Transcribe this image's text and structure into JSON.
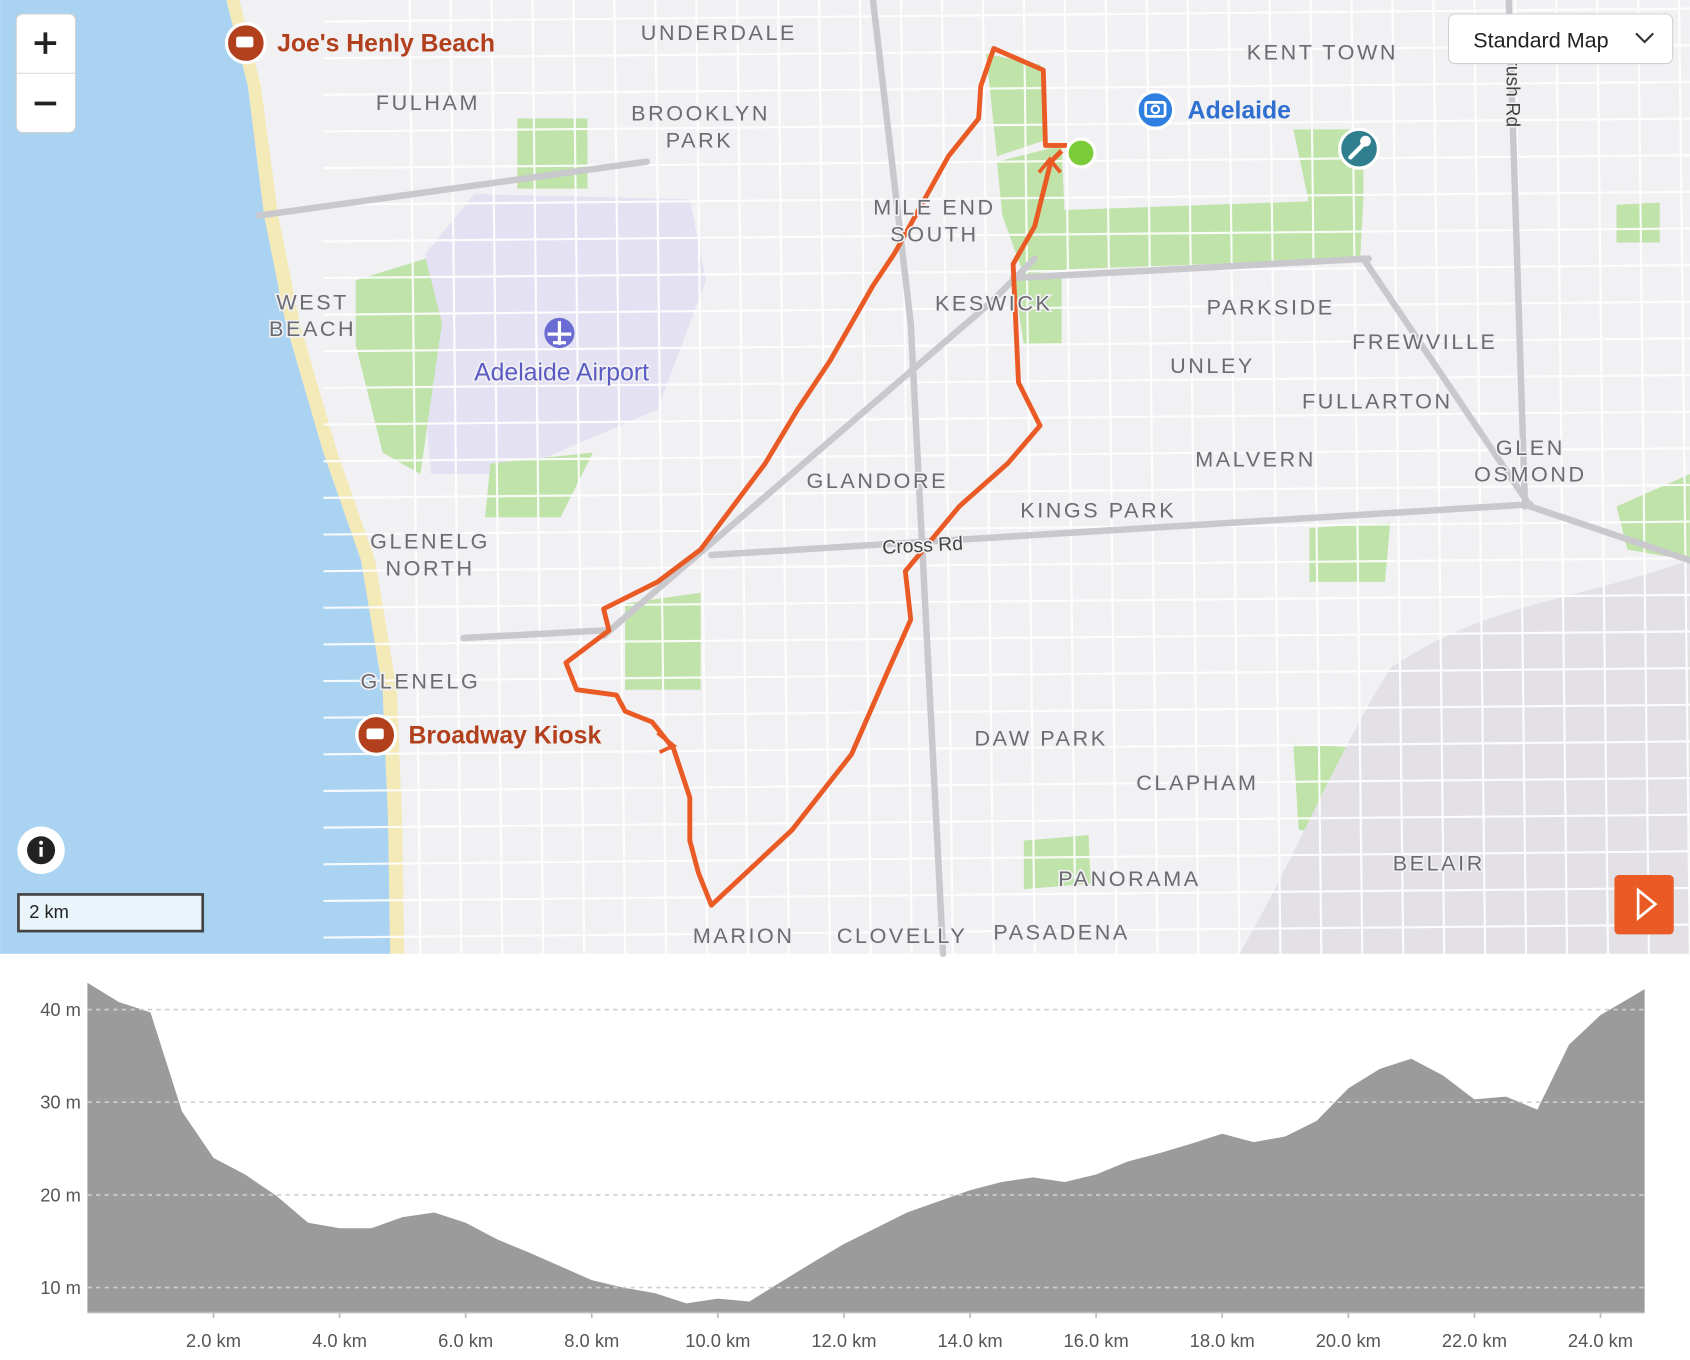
{
  "map": {
    "view_selector": "Standard Map",
    "scale": "2 km",
    "places": [
      "UNDERDALE",
      "KENT TOWN",
      "FULHAM",
      "BROOKLYN",
      "PARK",
      "MILE END",
      "SOUTH",
      "KESWICK",
      "PARKSIDE",
      "FREWVILLE",
      "UNLEY",
      "FULLARTON",
      "MALVERN",
      "GLEN",
      "OSMOND",
      "GLANDORE",
      "KINGS PARK",
      "WEST",
      "BEACH",
      "GLENELG",
      "NORTH",
      "GLENELG",
      "DAW PARK",
      "CLAPHAM",
      "PANORAMA",
      "BELAIR",
      "MARION",
      "CLOVELLY",
      "PASADENA"
    ],
    "pois": [
      "Joe's Henly Beach",
      "Broadway Kiosk",
      "Adelaide Airport",
      "Adelaide"
    ],
    "roads": [
      "Cross Rd",
      "rush Rd"
    ]
  },
  "chart_data": {
    "type": "area",
    "x": [
      0,
      0.5,
      1.0,
      1.5,
      2.0,
      2.5,
      3.0,
      3.5,
      4.0,
      4.5,
      5.0,
      5.5,
      6.0,
      6.5,
      7.0,
      7.5,
      8.0,
      8.5,
      9.0,
      9.5,
      10.0,
      10.5,
      11.0,
      11.5,
      12.0,
      12.5,
      13.0,
      13.5,
      14.0,
      14.5,
      15.0,
      15.5,
      16.0,
      16.5,
      17.0,
      17.5,
      18.0,
      18.5,
      19.0,
      19.5,
      20.0,
      20.5,
      21.0,
      21.5,
      22.0,
      22.5,
      23.0,
      23.5,
      24.0,
      24.5,
      24.7
    ],
    "values": [
      42.9,
      40.8,
      39.7,
      29,
      24,
      22.2,
      19.9,
      17,
      16.4,
      16.4,
      17.6,
      18.1,
      17,
      15.2,
      13.8,
      12.3,
      10.8,
      10,
      9.4,
      8.3,
      8.8,
      8.5,
      10.6,
      12.7,
      14.7,
      16.4,
      18.1,
      19.3,
      20.5,
      21.4,
      21.9,
      21.4,
      22.2,
      23.6,
      24.5,
      25.5,
      26.6,
      25.7,
      26.3,
      28,
      31.5,
      33.6,
      34.7,
      32.9,
      30.3,
      30.6,
      29.2,
      36.2,
      39.4,
      41.4,
      42.2
    ],
    "color": "#9b9b9b",
    "xlim": [
      0,
      24.7
    ],
    "ylim": [
      7.3,
      43.7
    ],
    "xticks": [
      {
        "value": 2,
        "label": "2.0 km"
      },
      {
        "value": 4,
        "label": "4.0 km"
      },
      {
        "value": 6,
        "label": "6.0 km"
      },
      {
        "value": 8,
        "label": "8.0 km"
      },
      {
        "value": 10,
        "label": "10.0 km"
      },
      {
        "value": 12,
        "label": "12.0 km"
      },
      {
        "value": 14,
        "label": "14.0 km"
      },
      {
        "value": 16,
        "label": "16.0 km"
      },
      {
        "value": 18,
        "label": "18.0 km"
      },
      {
        "value": 20,
        "label": "20.0 km"
      },
      {
        "value": 22,
        "label": "22.0 km"
      },
      {
        "value": 24,
        "label": "24.0 km"
      }
    ],
    "yticks": [
      {
        "value": 10,
        "label": "10 m"
      },
      {
        "value": 20,
        "label": "20 m"
      },
      {
        "value": 30,
        "label": "30 m"
      },
      {
        "value": 40,
        "label": "40 m"
      }
    ],
    "grid": true
  }
}
